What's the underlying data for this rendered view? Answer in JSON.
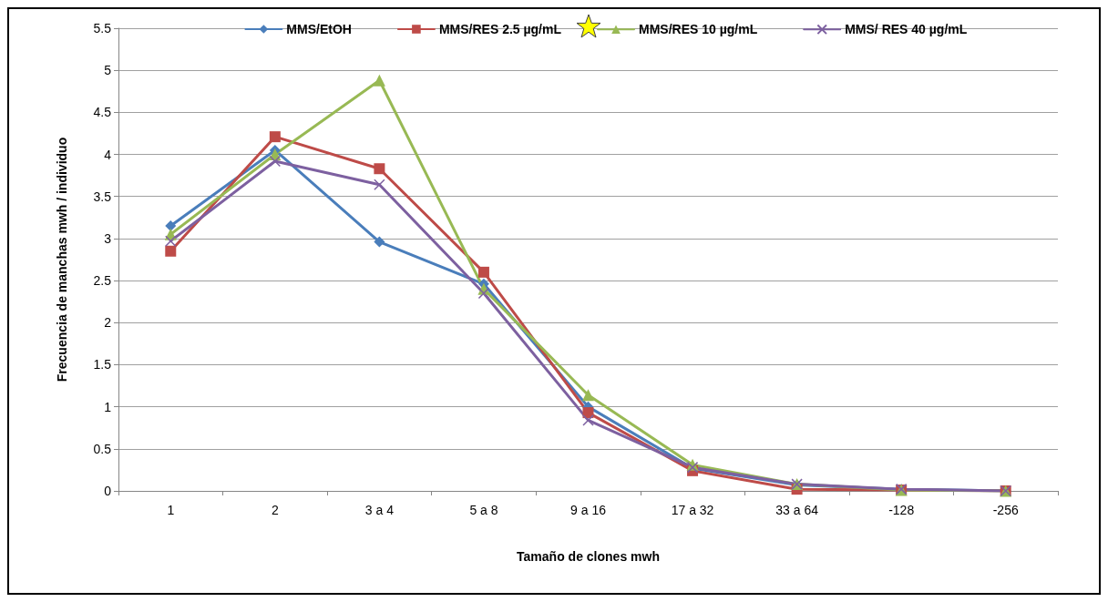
{
  "chart_data": {
    "type": "line",
    "xlabel": "Tamaño de clones mwh",
    "ylabel": "Frecuencia de manchas mwh / individuo",
    "categories": [
      "1",
      "2",
      "3 a 4",
      "5 a 8",
      "9 a 16",
      "17 a 32",
      "33 a 64",
      "-128",
      "-256"
    ],
    "series": [
      {
        "name": "MMS/EtOH",
        "color": "#4a7ebb",
        "marker": "diamond",
        "values": [
          3.15,
          4.05,
          2.96,
          2.46,
          1.0,
          0.27,
          0.07,
          0.02,
          0
        ]
      },
      {
        "name": "MMS/RES 2.5 µg/mL",
        "color": "#be4b48",
        "marker": "square",
        "values": [
          2.85,
          4.21,
          3.83,
          2.6,
          0.93,
          0.24,
          0.02,
          0.01,
          0
        ]
      },
      {
        "name": "MMS/RES 10 µg/mL",
        "color": "#98b954",
        "marker": "triangle",
        "values": [
          3.05,
          4.0,
          4.88,
          2.4,
          1.14,
          0.31,
          0.08,
          0.01,
          0
        ]
      },
      {
        "name": "MMS/ RES 40 µg/mL",
        "color": "#7d60a0",
        "marker": "cross",
        "values": [
          2.97,
          3.92,
          3.64,
          2.35,
          0.84,
          0.28,
          0.08,
          0.02,
          0
        ]
      }
    ],
    "ylim": [
      0,
      5.5
    ],
    "yticks": [
      0,
      0.5,
      1,
      1.5,
      2,
      2.5,
      3,
      3.5,
      4,
      4.5,
      5,
      5.5
    ],
    "grid": "y",
    "legend": "top",
    "line_style": "solid"
  }
}
